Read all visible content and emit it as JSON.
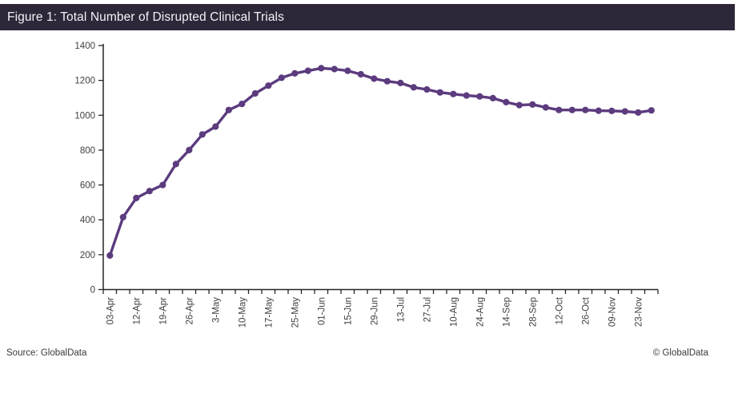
{
  "header": {
    "title": "Figure 1: Total Number of Disrupted Clinical Trials"
  },
  "footer": {
    "source": "Source: GlobalData",
    "copyright": "© GlobalData"
  },
  "colors": {
    "header_bg": "#2E2639",
    "header_text": "#F4F3F6",
    "line": "#5C3B7E",
    "axis": "#262626",
    "tick_label": "#404040",
    "footer_text": "#3A3A3A"
  },
  "chart_data": {
    "type": "line",
    "title": "Figure 1: Total Number of Disrupted Clinical Trials",
    "xlabel": "",
    "ylabel": "",
    "ylim": [
      0,
      1400
    ],
    "ytick_interval": 200,
    "yticks": [
      0,
      200,
      400,
      600,
      800,
      1000,
      1200,
      1400
    ],
    "grid": false,
    "legend": false,
    "marker": "circle",
    "series": [
      {
        "name": "Total number of disrupted clinical trials",
        "points": [
          {
            "label": "03-Apr",
            "value": 195
          },
          {
            "label": "",
            "value": 415
          },
          {
            "label": "12-Apr",
            "value": 525
          },
          {
            "label": "",
            "value": 565
          },
          {
            "label": "19-Apr",
            "value": 600
          },
          {
            "label": "",
            "value": 720
          },
          {
            "label": "26-Apr",
            "value": 800
          },
          {
            "label": "",
            "value": 890
          },
          {
            "label": "3-May",
            "value": 935
          },
          {
            "label": "",
            "value": 1030
          },
          {
            "label": "10-May",
            "value": 1065
          },
          {
            "label": "",
            "value": 1125
          },
          {
            "label": "17-May",
            "value": 1170
          },
          {
            "label": "",
            "value": 1215
          },
          {
            "label": "25-May",
            "value": 1240
          },
          {
            "label": "",
            "value": 1255
          },
          {
            "label": "01-Jun",
            "value": 1270
          },
          {
            "label": "",
            "value": 1265
          },
          {
            "label": "15-Jun",
            "value": 1255
          },
          {
            "label": "",
            "value": 1235
          },
          {
            "label": "29-Jun",
            "value": 1210
          },
          {
            "label": "",
            "value": 1195
          },
          {
            "label": "13-Jul",
            "value": 1185
          },
          {
            "label": "",
            "value": 1160
          },
          {
            "label": "27-Jul",
            "value": 1148
          },
          {
            "label": "",
            "value": 1131
          },
          {
            "label": "10-Aug",
            "value": 1122
          },
          {
            "label": "",
            "value": 1113
          },
          {
            "label": "24-Aug",
            "value": 1108
          },
          {
            "label": "",
            "value": 1098
          },
          {
            "label": "14-Sep",
            "value": 1075
          },
          {
            "label": "",
            "value": 1058
          },
          {
            "label": "28-Sep",
            "value": 1062
          },
          {
            "label": "",
            "value": 1045
          },
          {
            "label": "12-Oct",
            "value": 1030
          },
          {
            "label": "",
            "value": 1030
          },
          {
            "label": "26-Oct",
            "value": 1030
          },
          {
            "label": "",
            "value": 1026
          },
          {
            "label": "09-Nov",
            "value": 1025
          },
          {
            "label": "",
            "value": 1022
          },
          {
            "label": "23-Nov",
            "value": 1016
          },
          {
            "label": "",
            "value": 1028
          }
        ]
      }
    ]
  }
}
